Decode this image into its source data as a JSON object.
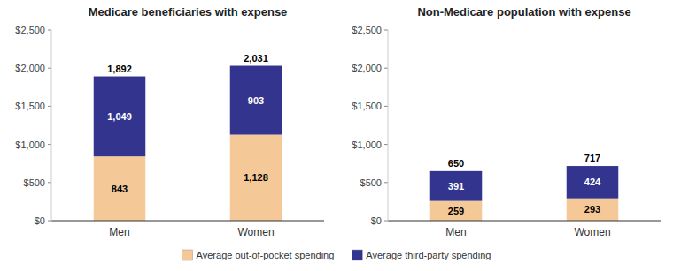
{
  "chart_data": [
    {
      "type": "bar",
      "stacked": true,
      "title": "Medicare beneficiaries with expense",
      "categories": [
        "Men",
        "Women"
      ],
      "series": [
        {
          "name": "Average out-of-pocket spending",
          "color": "#F5C897",
          "values": [
            843,
            1128
          ],
          "value_labels": [
            "843",
            "1,128"
          ]
        },
        {
          "name": "Average third-party spending",
          "color": "#33348E",
          "values": [
            1049,
            903
          ],
          "value_labels": [
            "1,049",
            "903"
          ]
        }
      ],
      "totals": [
        1892,
        2031
      ],
      "total_labels": [
        "1,892",
        "2,031"
      ],
      "ylim": [
        0,
        2500
      ],
      "yticks": [
        {
          "value": 0,
          "label": "$0"
        },
        {
          "value": 500,
          "label": "$500"
        },
        {
          "value": 1000,
          "label": "$1,000"
        },
        {
          "value": 1500,
          "label": "$1,500"
        },
        {
          "value": 2000,
          "label": "$2,000"
        },
        {
          "value": 2500,
          "label": "$2,500"
        }
      ],
      "grid": false,
      "data_labels": true,
      "legend": "bottom"
    },
    {
      "type": "bar",
      "stacked": true,
      "title": "Non-Medicare population with expense",
      "categories": [
        "Men",
        "Women"
      ],
      "series": [
        {
          "name": "Average out-of-pocket spending",
          "color": "#F5C897",
          "values": [
            259,
            293
          ],
          "value_labels": [
            "259",
            "293"
          ]
        },
        {
          "name": "Average third-party spending",
          "color": "#33348E",
          "values": [
            391,
            424
          ],
          "value_labels": [
            "391",
            "424"
          ]
        }
      ],
      "totals": [
        650,
        717
      ],
      "total_labels": [
        "650",
        "717"
      ],
      "ylim": [
        0,
        2500
      ],
      "yticks": [
        {
          "value": 0,
          "label": "$0"
        },
        {
          "value": 500,
          "label": "$500"
        },
        {
          "value": 1000,
          "label": "$1,000"
        },
        {
          "value": 1500,
          "label": "$1,500"
        },
        {
          "value": 2000,
          "label": "$2,000"
        },
        {
          "value": 2500,
          "label": "$2,500"
        }
      ],
      "grid": false,
      "data_labels": true,
      "legend": "bottom"
    }
  ]
}
